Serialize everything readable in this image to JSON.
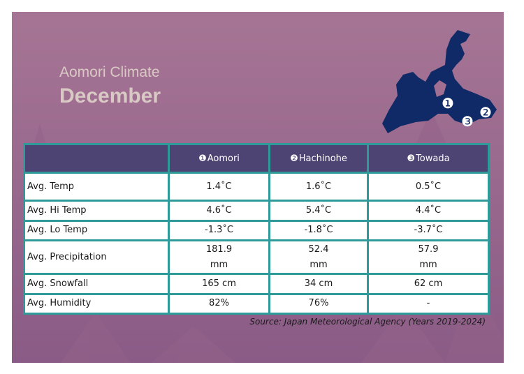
{
  "header": {
    "title_line1": "Aomori Climate",
    "title_line2": "December"
  },
  "map": {
    "labels": [
      "❶",
      "❷",
      "❸"
    ],
    "color": "#0f2a66"
  },
  "table": {
    "columns": [
      {
        "num": "❶",
        "name": "Aomori"
      },
      {
        "num": "❷",
        "name": "Hachinohe"
      },
      {
        "num": "❸",
        "name": "Towada"
      }
    ],
    "rows": [
      {
        "label": "Avg. Temp",
        "values": [
          "1.4˚C",
          "1.6˚C",
          "0.5˚C"
        ]
      },
      {
        "label": "Avg. Hi Temp",
        "values": [
          "4.6˚C",
          "5.4˚C",
          "4.4˚C"
        ]
      },
      {
        "label": "Avg. Lo Temp",
        "values": [
          "-1.3˚C",
          "-1.8˚C",
          "-3.7˚C"
        ]
      },
      {
        "label": "Avg. Precipitation",
        "values": [
          [
            "181.9",
            "mm"
          ],
          [
            "52.4",
            "mm"
          ],
          [
            "57.9",
            "mm"
          ]
        ]
      },
      {
        "label": "Avg. Snowfall",
        "values": [
          "165 cm",
          "34 cm",
          "62 cm"
        ]
      },
      {
        "label": "Avg. Humidity",
        "values": [
          "82%",
          "76%",
          "-"
        ]
      }
    ]
  },
  "source": "Source: Japan Meteorological Agency (Years 2019-2024)",
  "colors": {
    "background": "#a06f92",
    "header_row": "#4d4473",
    "border": "#2f9a9a",
    "title": "#d9c9c4"
  }
}
